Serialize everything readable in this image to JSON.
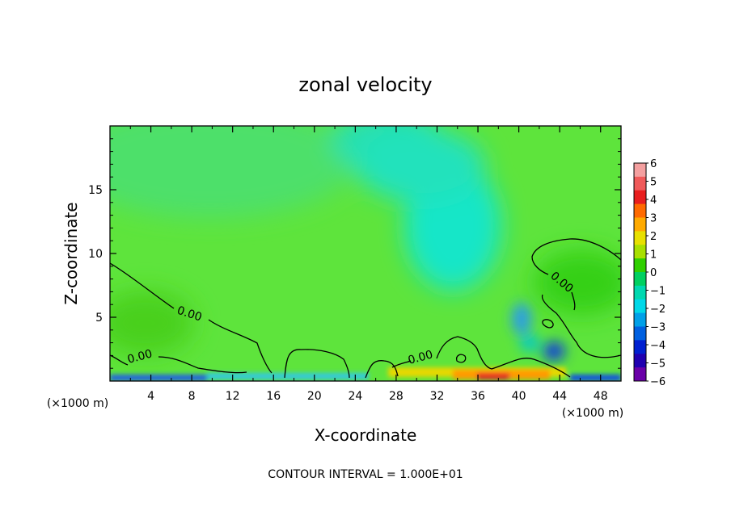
{
  "chart_data": {
    "type": "heatmap",
    "title": "zonal velocity",
    "xlabel": "X-coordinate",
    "ylabel": "Z-coordinate",
    "x_unit_left": "(×1000 m)",
    "x_unit_right": "(×1000 m)",
    "footer": "CONTOUR INTERVAL = 1.000E+01",
    "xlim": [
      0,
      50
    ],
    "ylim": [
      0,
      20
    ],
    "x_ticks": [
      4,
      8,
      12,
      16,
      20,
      24,
      28,
      32,
      36,
      40,
      44,
      48
    ],
    "y_ticks": [
      5,
      10,
      15
    ],
    "contour_labels": [
      "0.00",
      "0.00",
      "0.00",
      "0.00"
    ],
    "colorbar": {
      "ticks": [
        "6",
        "5",
        "4",
        "3",
        "2",
        "1",
        "0",
        "−1",
        "−2",
        "−3",
        "−4",
        "−5",
        "−6"
      ],
      "colors": [
        "#f4a0a0",
        "#f05a5a",
        "#e81e1e",
        "#ff6a00",
        "#ffaa00",
        "#e8e000",
        "#a8e000",
        "#30d000",
        "#00d060",
        "#00d8b0",
        "#00d8e8",
        "#00a0e8",
        "#0060e0",
        "#0020d0",
        "#2000b0",
        "#6a00a8"
      ]
    }
  }
}
